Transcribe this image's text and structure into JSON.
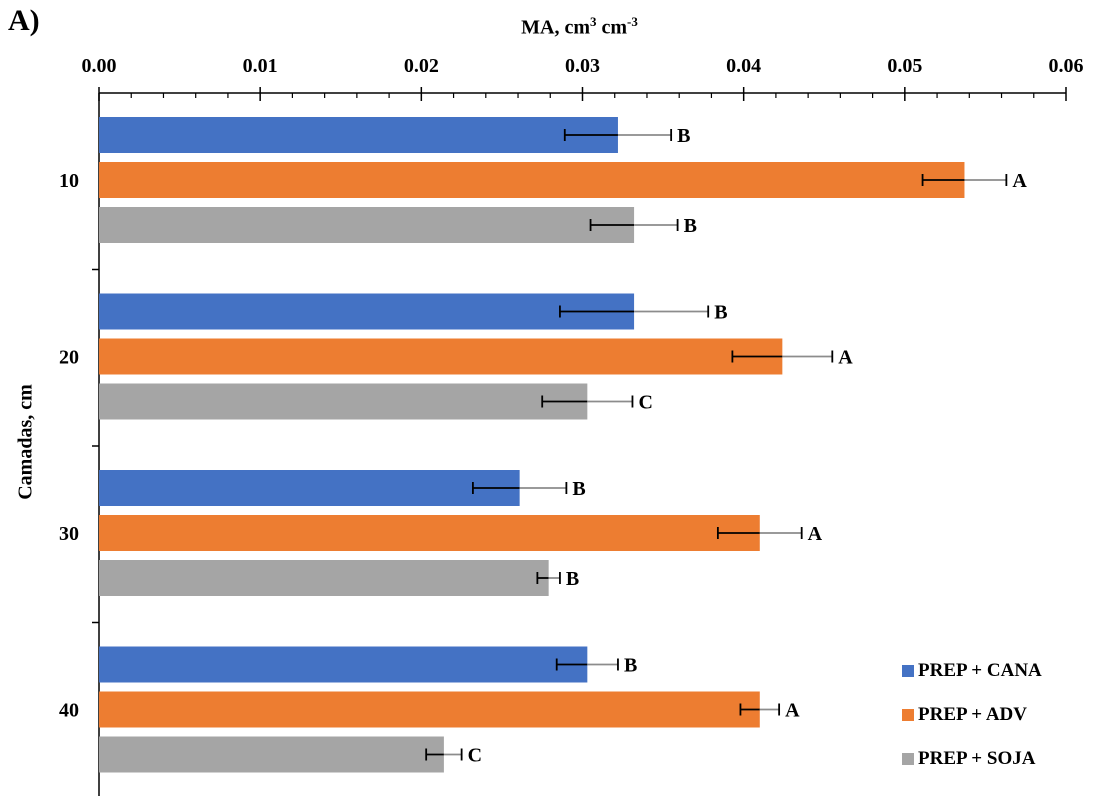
{
  "panel_label": "A)",
  "chart_data": {
    "type": "bar",
    "orientation": "horizontal",
    "xlabel_text": "MA, cm",
    "xlabel_sup1": "3",
    "xlabel_mid": " cm",
    "xlabel_sup2": "-3",
    "ylabel": "Camadas, cm",
    "xlim": [
      0,
      0.06
    ],
    "xticks": [
      "0.00",
      "0.01",
      "0.02",
      "0.03",
      "0.04",
      "0.05",
      "0.06"
    ],
    "xtick_values": [
      0,
      0.01,
      0.02,
      0.03,
      0.04,
      0.05,
      0.06
    ],
    "xaxis_position": "top",
    "grid": false,
    "legend_position": "bottom-right",
    "categories": [
      "10",
      "20",
      "30",
      "40"
    ],
    "series": [
      {
        "name": "PREP + CANA",
        "color": "#4472C4",
        "values": [
          0.0322,
          0.0332,
          0.0261,
          0.0303
        ],
        "errors": [
          0.0033,
          0.0046,
          0.0029,
          0.0019
        ],
        "letters": [
          "B",
          "B",
          "B",
          "B"
        ]
      },
      {
        "name": "PREP + ADV",
        "color": "#ED7D31",
        "values": [
          0.0537,
          0.0424,
          0.041,
          0.041
        ],
        "errors": [
          0.0026,
          0.0031,
          0.0026,
          0.0012
        ],
        "letters": [
          "A",
          "A",
          "A",
          "A"
        ]
      },
      {
        "name": "PREP + SOJA",
        "color": "#A5A5A5",
        "values": [
          0.0332,
          0.0303,
          0.0279,
          0.0214
        ],
        "errors": [
          0.0027,
          0.0028,
          0.0007,
          0.0011
        ],
        "letters": [
          "B",
          "C",
          "B",
          "C"
        ]
      }
    ]
  }
}
